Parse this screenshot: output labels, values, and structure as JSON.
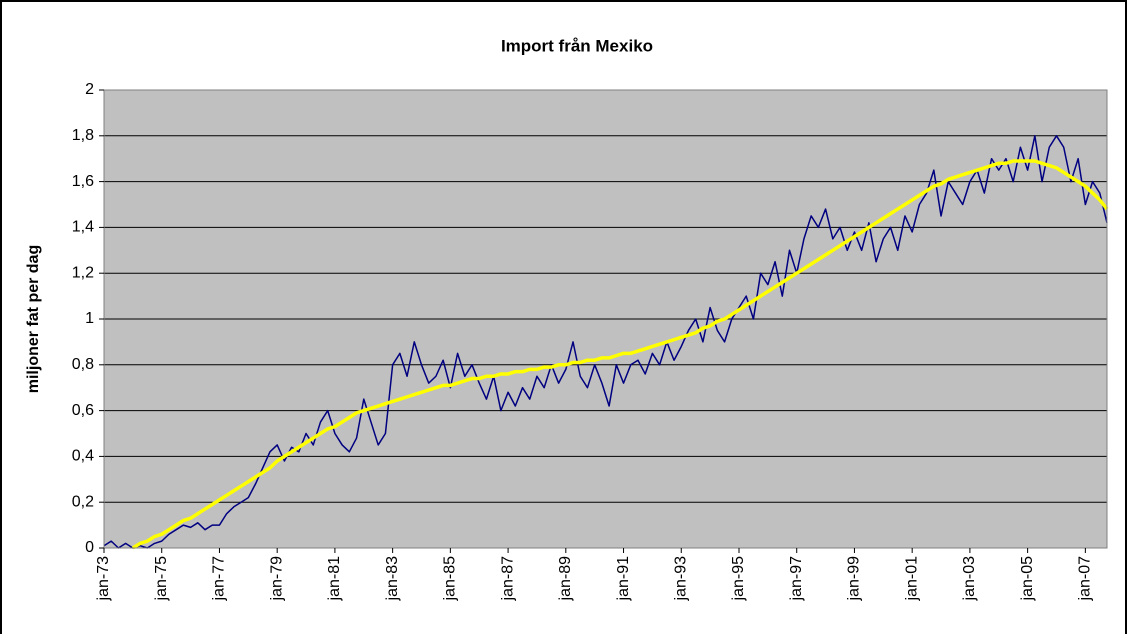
{
  "chart_data": {
    "type": "line",
    "title": "Import från Mexiko",
    "ylabel": "miljoner fat per dag",
    "categories": [
      "jan-73",
      null,
      null,
      null,
      null,
      null,
      null,
      null,
      "jan-75",
      null,
      null,
      null,
      null,
      null,
      null,
      null,
      "jan-77",
      null,
      null,
      null,
      null,
      null,
      null,
      null,
      "jan-79",
      null,
      null,
      null,
      null,
      null,
      null,
      null,
      "jan-81",
      null,
      null,
      null,
      null,
      null,
      null,
      null,
      "jan-83",
      null,
      null,
      null,
      null,
      null,
      null,
      null,
      "jan-85",
      null,
      null,
      null,
      null,
      null,
      null,
      null,
      "jan-87",
      null,
      null,
      null,
      null,
      null,
      null,
      null,
      "jan-89",
      null,
      null,
      null,
      null,
      null,
      null,
      null,
      "jan-91",
      null,
      null,
      null,
      null,
      null,
      null,
      null,
      "jan-93",
      null,
      null,
      null,
      null,
      null,
      null,
      null,
      "jan-95",
      null,
      null,
      null,
      null,
      null,
      null,
      null,
      "jan-97",
      null,
      null,
      null,
      null,
      null,
      null,
      null,
      "jan-99",
      null,
      null,
      null,
      null,
      null,
      null,
      null,
      "jan-01",
      null,
      null,
      null,
      null,
      null,
      null,
      null,
      "jan-03",
      null,
      null,
      null,
      null,
      null,
      null,
      null,
      "jan-05",
      null,
      null,
      null,
      null,
      null,
      null,
      null,
      "jan-07",
      null,
      null,
      null
    ],
    "series": [
      {
        "color": "#000080",
        "values": [
          0.01,
          0.03,
          0.0,
          0.02,
          0.0,
          0.01,
          0.0,
          0.02,
          0.03,
          0.06,
          0.08,
          0.1,
          0.09,
          0.11,
          0.08,
          0.1,
          0.1,
          0.15,
          0.18,
          0.2,
          0.22,
          0.28,
          0.35,
          0.42,
          0.45,
          0.38,
          0.44,
          0.42,
          0.5,
          0.45,
          0.55,
          0.6,
          0.5,
          0.45,
          0.42,
          0.48,
          0.65,
          0.55,
          0.45,
          0.5,
          0.8,
          0.85,
          0.75,
          0.9,
          0.8,
          0.72,
          0.75,
          0.82,
          0.7,
          0.85,
          0.75,
          0.8,
          0.72,
          0.65,
          0.75,
          0.6,
          0.68,
          0.62,
          0.7,
          0.65,
          0.75,
          0.7,
          0.8,
          0.72,
          0.78,
          0.9,
          0.75,
          0.7,
          0.8,
          0.72,
          0.62,
          0.8,
          0.72,
          0.8,
          0.82,
          0.76,
          0.85,
          0.8,
          0.9,
          0.82,
          0.88,
          0.95,
          1.0,
          0.9,
          1.05,
          0.95,
          0.9,
          1.0,
          1.05,
          1.1,
          1.0,
          1.2,
          1.15,
          1.25,
          1.1,
          1.3,
          1.2,
          1.35,
          1.45,
          1.4,
          1.48,
          1.35,
          1.4,
          1.3,
          1.38,
          1.3,
          1.42,
          1.25,
          1.35,
          1.4,
          1.3,
          1.45,
          1.38,
          1.5,
          1.55,
          1.65,
          1.45,
          1.6,
          1.55,
          1.5,
          1.6,
          1.65,
          1.55,
          1.7,
          1.65,
          1.7,
          1.6,
          1.75,
          1.65,
          1.8,
          1.6,
          1.75,
          1.8,
          1.75,
          1.6,
          1.7,
          1.5,
          1.6,
          1.55,
          1.42
        ]
      },
      {
        "color": "#ffff00",
        "values": [
          null,
          null,
          null,
          null,
          0.0,
          0.02,
          0.03,
          0.05,
          0.06,
          0.08,
          0.1,
          0.12,
          0.13,
          0.15,
          0.17,
          0.19,
          0.21,
          0.23,
          0.25,
          0.27,
          0.29,
          0.31,
          0.33,
          0.35,
          0.38,
          0.4,
          0.42,
          0.44,
          0.46,
          0.48,
          0.5,
          0.52,
          0.53,
          0.55,
          0.57,
          0.59,
          0.6,
          0.61,
          0.62,
          0.63,
          0.64,
          0.65,
          0.66,
          0.67,
          0.68,
          0.69,
          0.7,
          0.71,
          0.71,
          0.72,
          0.73,
          0.74,
          0.74,
          0.75,
          0.75,
          0.76,
          0.76,
          0.77,
          0.77,
          0.78,
          0.78,
          0.79,
          0.79,
          0.8,
          0.8,
          0.81,
          0.81,
          0.82,
          0.82,
          0.83,
          0.83,
          0.84,
          0.85,
          0.85,
          0.86,
          0.87,
          0.88,
          0.89,
          0.9,
          0.91,
          0.92,
          0.93,
          0.94,
          0.96,
          0.97,
          0.99,
          1.0,
          1.02,
          1.04,
          1.06,
          1.08,
          1.1,
          1.12,
          1.14,
          1.16,
          1.18,
          1.2,
          1.22,
          1.24,
          1.26,
          1.28,
          1.3,
          1.32,
          1.34,
          1.36,
          1.38,
          1.4,
          1.42,
          1.44,
          1.46,
          1.48,
          1.5,
          1.52,
          1.54,
          1.56,
          1.58,
          1.59,
          1.61,
          1.62,
          1.63,
          1.64,
          1.65,
          1.66,
          1.67,
          1.68,
          1.68,
          1.69,
          1.69,
          1.69,
          1.69,
          1.68,
          1.67,
          1.66,
          1.64,
          1.62,
          1.6,
          1.58,
          1.55,
          1.52,
          1.48
        ]
      }
    ],
    "ylim": [
      0,
      2
    ],
    "yticks": [
      0,
      {
        "value": 0.2,
        "label": "0,2"
      },
      {
        "value": 0.4,
        "label": "0,4"
      },
      {
        "value": 0.6,
        "label": "0,6"
      },
      {
        "value": 0.8,
        "label": "0,8"
      },
      1,
      {
        "value": 1.2,
        "label": "1,2"
      },
      {
        "value": 1.4,
        "label": "1,4"
      },
      {
        "value": 1.6,
        "label": "1,6"
      },
      {
        "value": 1.8,
        "label": "1,8"
      },
      2
    ],
    "grid": true
  }
}
